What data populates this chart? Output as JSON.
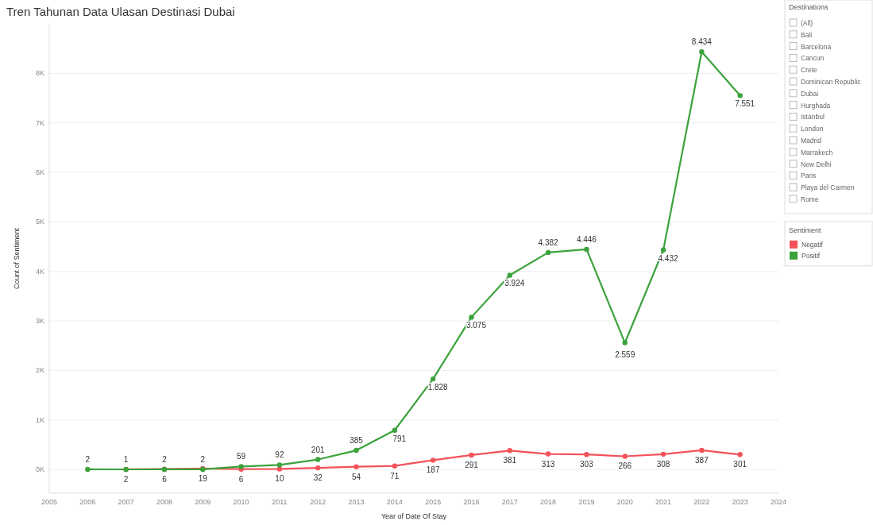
{
  "chart_data": {
    "type": "line",
    "title": "Tren Tahunan Data Ulasan Destinasi Dubai",
    "xlabel": "Year of Date Of Stay",
    "ylabel": "Count of Sentiment",
    "legend_title": "Sentiment",
    "legend": "right",
    "x": [
      2006,
      2007,
      2008,
      2009,
      2010,
      2011,
      2012,
      2013,
      2014,
      2015,
      2016,
      2017,
      2018,
      2019,
      2020,
      2021,
      2022,
      2023
    ],
    "series": [
      {
        "name": "Negatif",
        "color": "#f4525a",
        "values": [
          null,
          2,
          6,
          19,
          6,
          10,
          32,
          54,
          71,
          187,
          291,
          381,
          313,
          303,
          266,
          308,
          387,
          301
        ],
        "value_labels": [
          null,
          "2",
          "6",
          "19",
          "6",
          "10",
          "32",
          "54",
          "71",
          "187",
          "291",
          "381",
          "313",
          "303",
          "266",
          "308",
          "387",
          "301"
        ]
      },
      {
        "name": "Positif",
        "color": "#3ca23c",
        "values": [
          2,
          1,
          2,
          2,
          59,
          92,
          201,
          385,
          791,
          1828,
          3075,
          3924,
          4382,
          4446,
          2559,
          4432,
          8434,
          7551
        ],
        "value_labels": [
          "2",
          "1",
          "2",
          "2",
          "59",
          "92",
          "201",
          "385",
          "791",
          "1.828",
          "3.075",
          "3.924",
          "4.382",
          "4.446",
          "2.559",
          "4.432",
          "8.434",
          "7.551"
        ]
      }
    ],
    "xlim": [
      2005,
      2024
    ],
    "xticks": [
      2005,
      2006,
      2007,
      2008,
      2009,
      2010,
      2011,
      2012,
      2013,
      2014,
      2015,
      2016,
      2017,
      2018,
      2019,
      2020,
      2021,
      2022,
      2023,
      2024
    ],
    "ylim": [
      -480,
      9000
    ],
    "yticks": [
      {
        "value": 0,
        "label": "0K"
      },
      {
        "value": 1000,
        "label": "1K"
      },
      {
        "value": 2000,
        "label": "2K"
      },
      {
        "value": 3000,
        "label": "3K"
      },
      {
        "value": 4000,
        "label": "4K"
      },
      {
        "value": 5000,
        "label": "5K"
      },
      {
        "value": 6000,
        "label": "6K"
      },
      {
        "value": 7000,
        "label": "7K"
      },
      {
        "value": 8000,
        "label": "8K"
      }
    ],
    "grid": "y",
    "marker": "circle",
    "line_style": "solid",
    "annotations": [
      "Destinations",
      "(All)",
      "Bali",
      "Barcelona",
      "Cancun",
      "Crete",
      "Dominican Republic",
      "Dubai",
      "Hurghada",
      "Istanbul",
      "London",
      "Madrid",
      "Marrakech",
      "New Delhi",
      "Paris",
      "Playa del Carmen",
      "Rome"
    ]
  }
}
